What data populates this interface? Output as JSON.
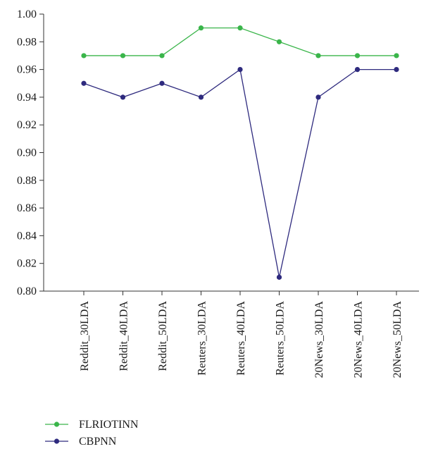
{
  "chart_data": {
    "type": "line",
    "categories": [
      "Reddit_30LDA",
      "Reddit_40LDA",
      "Reddit_50LDA",
      "Reuters_30LDA",
      "Reuters_40LDA",
      "Reuters_50LDA",
      "20News_30LDA",
      "20News_40LDA",
      "20News_50LDA"
    ],
    "series": [
      {
        "name": "FLRIOTINN",
        "color": "#3ab54a",
        "values": [
          0.97,
          0.97,
          0.97,
          0.99,
          0.99,
          0.98,
          0.97,
          0.97,
          0.97
        ]
      },
      {
        "name": "CBPNN",
        "color": "#2e2a7e",
        "values": [
          0.95,
          0.94,
          0.95,
          0.94,
          0.96,
          0.81,
          0.94,
          0.96,
          0.96
        ]
      }
    ],
    "ylim": [
      0.8,
      1.0
    ],
    "yticks": [
      "0.80",
      "0.82",
      "0.84",
      "0.86",
      "0.88",
      "0.90",
      "0.92",
      "0.94",
      "0.96",
      "0.98",
      "1.00"
    ],
    "grid": false,
    "legend_position": "bottom-left"
  }
}
